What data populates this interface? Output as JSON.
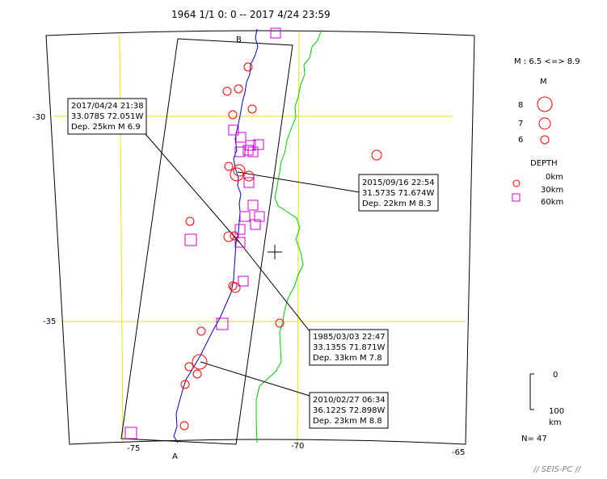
{
  "title": "1964 1/1 0: 0 -- 2017 4/24 23:59",
  "axes": {
    "lon_ticks": [
      {
        "value": -75,
        "label": "-75"
      },
      {
        "value": -70,
        "label": "-70"
      },
      {
        "value": -65,
        "label": "-65"
      }
    ],
    "lat_ticks": [
      {
        "value": -30,
        "label": "-30"
      },
      {
        "value": -35,
        "label": "-35"
      }
    ],
    "grid_color": "#e6e600"
  },
  "cross_section": {
    "start_label": "A",
    "end_label": "B"
  },
  "legend": {
    "mag_range": "M : 6.5 <=> 8.9",
    "mag_header": "M",
    "mags": [
      {
        "label": "8",
        "value": 8
      },
      {
        "label": "7",
        "value": 7
      },
      {
        "label": "6",
        "value": 6
      }
    ],
    "depth_header": "DEPTH",
    "depths": [
      {
        "label": "0km",
        "value": 0
      },
      {
        "label": "30km",
        "value": 30
      },
      {
        "label": "60km",
        "value": 60
      }
    ],
    "scale_top": "0",
    "scale_bottom": "100",
    "scale_unit": "km",
    "count": "N= 47"
  },
  "callouts": [
    {
      "date": "2017/04/24 21:38",
      "coords": "33.078S  72.051W",
      "depth_mag": "Dep. 25km    M 6.9"
    },
    {
      "date": "2015/09/16 22:54",
      "coords": "31.573S  71.674W",
      "depth_mag": "Dep. 22km    M 8.3"
    },
    {
      "date": "1985/03/03 22:47",
      "coords": "33.135S  71.871W",
      "depth_mag": "Dep. 33km    M 7.8"
    },
    {
      "date": "2010/02/27 06:34",
      "coords": "36.122S  72.898W",
      "depth_mag": "Dep. 23km    M 8.8"
    }
  ],
  "footer": "// SEIS-PC //",
  "colors": {
    "shallow": "#ff0000",
    "deep": "#cc00cc",
    "coast": "#0000cc",
    "border": "#00cc00",
    "grid": "#e6e600"
  }
}
